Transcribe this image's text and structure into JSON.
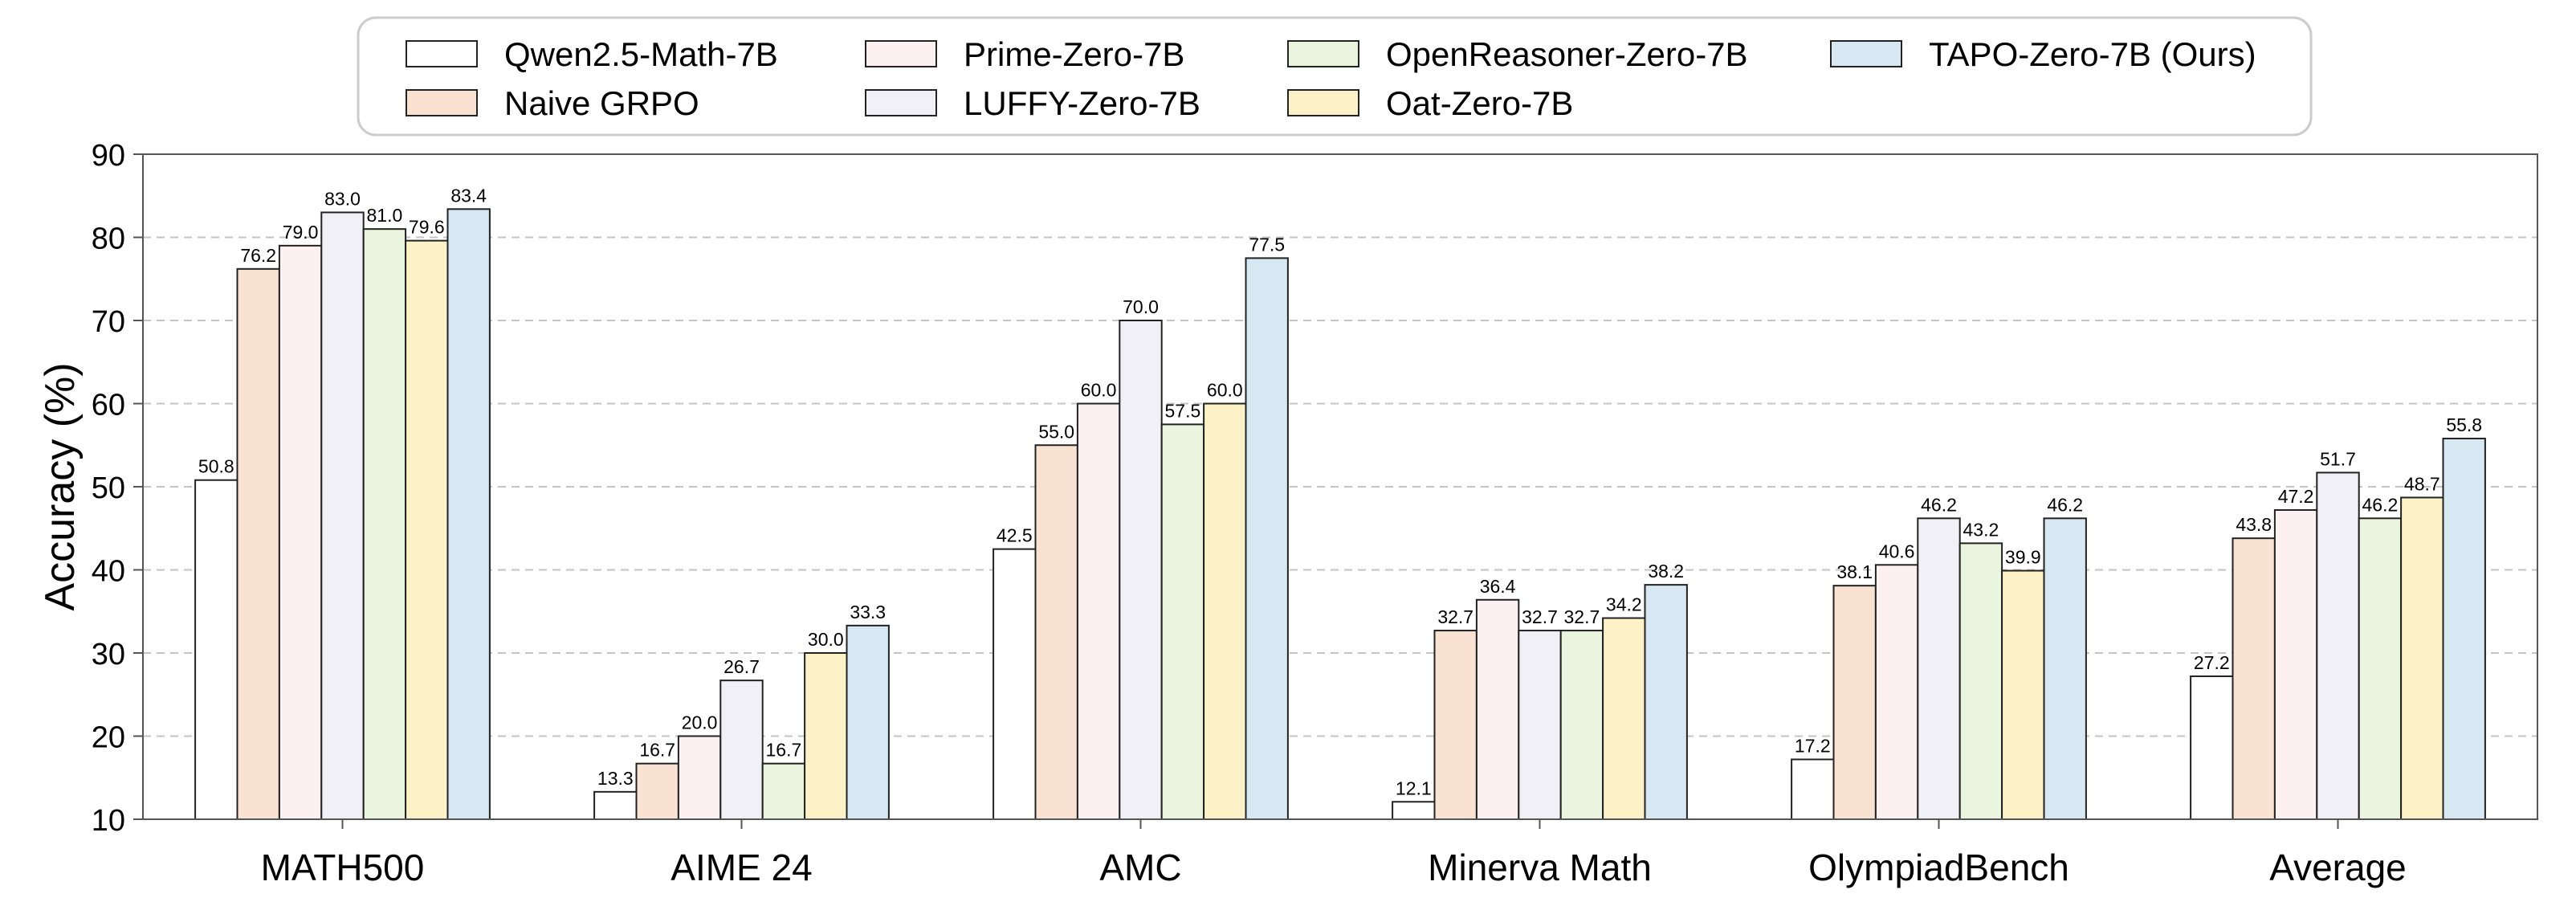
{
  "chart_data": {
    "type": "bar",
    "title": "",
    "xlabel": "",
    "ylabel": "Accuracy (%)",
    "ylim": [
      10,
      90
    ],
    "yticks": [
      10,
      20,
      30,
      40,
      50,
      60,
      70,
      80,
      90
    ],
    "grid": "horizontal dashed",
    "legend_position": "top-center",
    "categories": [
      "MATH500",
      "AIME 24",
      "AMC",
      "Minerva Math",
      "OlympiadBench",
      "Average"
    ],
    "series": [
      {
        "name": "Qwen2.5-Math-7B",
        "color": "#ffffff",
        "values": [
          50.8,
          13.3,
          42.5,
          12.1,
          17.2,
          27.2
        ]
      },
      {
        "name": "Naive GRPO",
        "color": "#f9e2d2",
        "values": [
          76.2,
          16.7,
          55.0,
          32.7,
          38.1,
          43.8
        ]
      },
      {
        "name": "Prime-Zero-7B",
        "color": "#fdf0f3",
        "values": [
          79.0,
          20.0,
          60.0,
          36.4,
          40.6,
          47.2
        ]
      },
      {
        "name": "LUFFY-Zero-7B",
        "color": "#f0f0f6",
        "values": [
          83.0,
          26.7,
          70.0,
          32.7,
          46.2,
          51.7
        ]
      },
      {
        "name": "OpenReasoner-Zero-7B",
        "color": "#e9f5df",
        "values": [
          81.0,
          16.7,
          57.5,
          32.7,
          43.2,
          46.2
        ]
      },
      {
        "name": "Oat-Zero-7B",
        "color": "#fdf1c8",
        "values": [
          79.6,
          30.0,
          60.0,
          34.2,
          39.9,
          48.7
        ]
      },
      {
        "name": "TAPO-Zero-7B (Ours)",
        "color": "#d8e8f2",
        "values": [
          83.4,
          33.3,
          77.5,
          38.2,
          46.2,
          55.8
        ]
      }
    ]
  }
}
